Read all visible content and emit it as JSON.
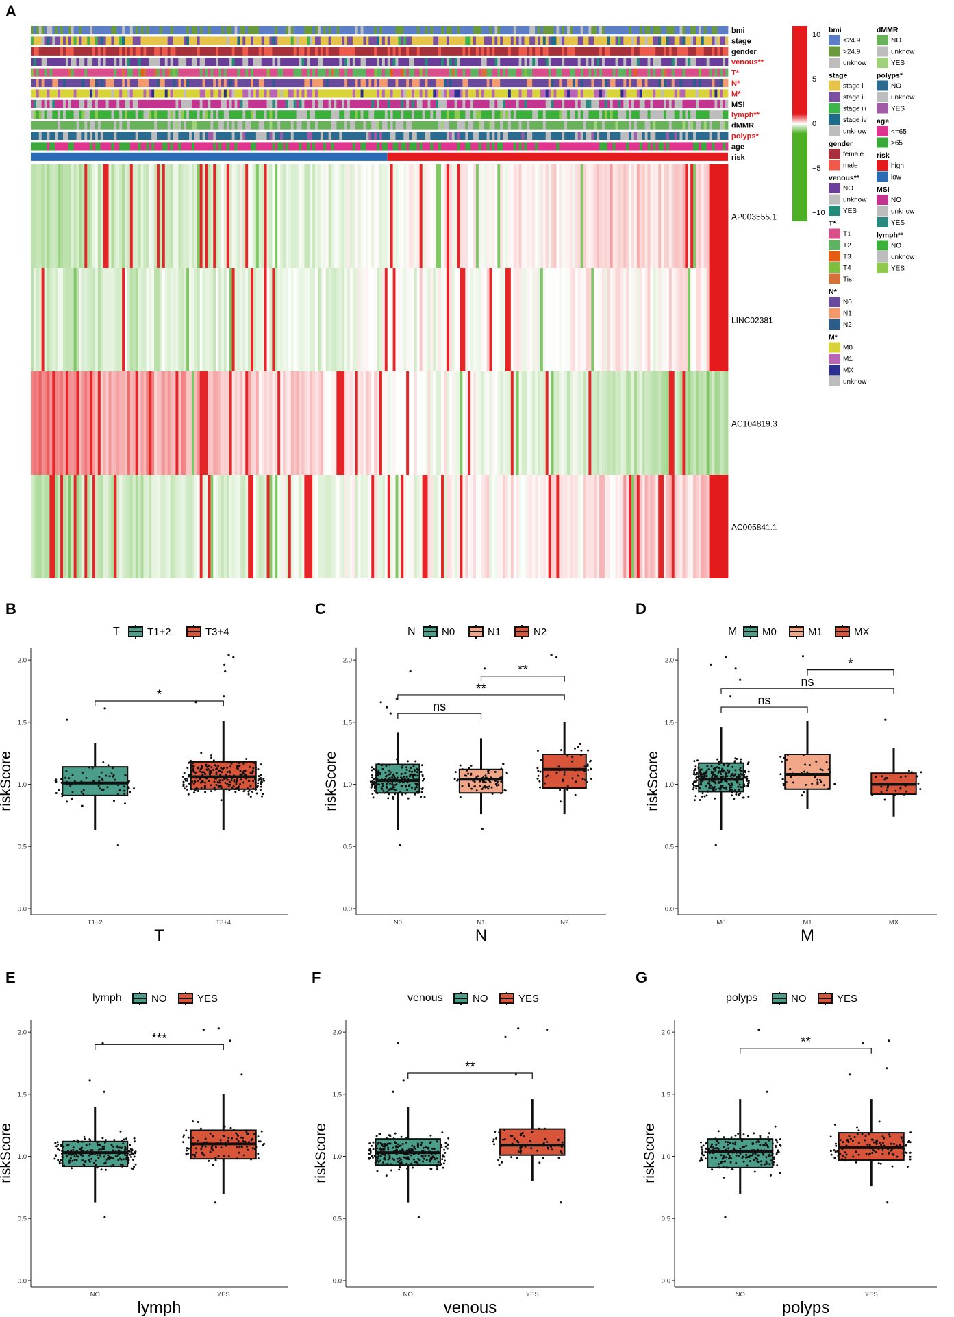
{
  "panels": {
    "A": "A",
    "B": "B",
    "C": "C",
    "D": "D",
    "E": "E",
    "F": "F",
    "G": "G"
  },
  "chart_data": [
    {
      "panel": "A",
      "type": "heatmap",
      "annotation_tracks": [
        {
          "label": "bmi",
          "significant": false
        },
        {
          "label": "stage",
          "significant": false
        },
        {
          "label": "gender",
          "significant": false
        },
        {
          "label": "venous**",
          "significant": true
        },
        {
          "label": "T*",
          "significant": true
        },
        {
          "label": "N*",
          "significant": true
        },
        {
          "label": "M*",
          "significant": true
        },
        {
          "label": "MSI",
          "significant": false
        },
        {
          "label": "lymph**",
          "significant": true
        },
        {
          "label": "dMMR",
          "significant": false
        },
        {
          "label": "polyps*",
          "significant": true
        },
        {
          "label": "age",
          "significant": false
        },
        {
          "label": "risk",
          "significant": false
        }
      ],
      "genes": [
        "AP003555.1",
        "LINC02381",
        "AC104819.3",
        "AC005841.1"
      ],
      "risk_split": {
        "low_fraction": 0.51
      },
      "color_scale": {
        "ticks": [
          10,
          5,
          0,
          -5,
          -10
        ],
        "high": "#e41a1c",
        "mid": "#ffffff",
        "low": "#4daf24"
      },
      "legends": [
        {
          "title": "bmi",
          "significant": false,
          "items": [
            {
              "label": "<24.9",
              "color": "#5b7ec6"
            },
            {
              "label": ">24.9",
              "color": "#6a9a3c"
            },
            {
              "label": "unknow",
              "color": "#bdbdbd"
            }
          ]
        },
        {
          "title": "stage",
          "significant": false,
          "items": [
            {
              "label": "stage i",
              "color": "#e6c449"
            },
            {
              "label": "stage ii",
              "color": "#7a4fa0"
            },
            {
              "label": "stage iii",
              "color": "#3db54a"
            },
            {
              "label": "stage iv",
              "color": "#1f6b8a"
            },
            {
              "label": "unknow",
              "color": "#bdbdbd"
            }
          ]
        },
        {
          "title": "gender",
          "significant": false,
          "items": [
            {
              "label": "female",
              "color": "#a8303a"
            },
            {
              "label": "male",
              "color": "#ef5a4a"
            }
          ]
        },
        {
          "title": "venous**",
          "significant": false,
          "items": [
            {
              "label": "NO",
              "color": "#6a3d9a"
            },
            {
              "label": "unknow",
              "color": "#bdbdbd"
            },
            {
              "label": "YES",
              "color": "#238b7a"
            }
          ]
        },
        {
          "title": "T*",
          "significant": false,
          "items": [
            {
              "label": "T1",
              "color": "#d94f8b"
            },
            {
              "label": "T2",
              "color": "#5fb360"
            },
            {
              "label": "T3",
              "color": "#e65c10"
            },
            {
              "label": "T4",
              "color": "#7fbf3f"
            },
            {
              "label": "Tis",
              "color": "#d6703a"
            }
          ]
        },
        {
          "title": "N*",
          "significant": false,
          "items": [
            {
              "label": "N0",
              "color": "#6a4a9c"
            },
            {
              "label": "N1",
              "color": "#f29a6e"
            },
            {
              "label": "N2",
              "color": "#2a5d8a"
            }
          ]
        },
        {
          "title": "M*",
          "significant": false,
          "items": [
            {
              "label": "M0",
              "color": "#d9d33a"
            },
            {
              "label": "M1",
              "color": "#b865b5"
            },
            {
              "label": "MX",
              "color": "#2b2f8f"
            },
            {
              "label": "unknow",
              "color": "#bdbdbd"
            }
          ]
        },
        {
          "title": "dMMR",
          "significant": false,
          "items": [
            {
              "label": "NO",
              "color": "#68b35a"
            },
            {
              "label": "unknow",
              "color": "#bdbdbd"
            },
            {
              "label": "YES",
              "color": "#9fd27a"
            }
          ]
        },
        {
          "title": "polyps*",
          "significant": false,
          "items": [
            {
              "label": "NO",
              "color": "#2a6b8f"
            },
            {
              "label": "unknow",
              "color": "#bdbdbd"
            },
            {
              "label": "YES",
              "color": "#a05aa8"
            }
          ]
        },
        {
          "title": "age",
          "significant": false,
          "items": [
            {
              "label": "<=65",
              "color": "#e0358f"
            },
            {
              "label": ">65",
              "color": "#3aa83a"
            }
          ]
        },
        {
          "title": "risk",
          "significant": false,
          "items": [
            {
              "label": "high",
              "color": "#e41a1c"
            },
            {
              "label": "low",
              "color": "#2b6bb5"
            }
          ]
        },
        {
          "title": "MSI",
          "significant": false,
          "items": [
            {
              "label": "NO",
              "color": "#c2348f"
            },
            {
              "label": "unknow",
              "color": "#bdbdbd"
            },
            {
              "label": "YES",
              "color": "#2a8a80"
            }
          ]
        },
        {
          "title": "lymph**",
          "significant": false,
          "items": [
            {
              "label": "NO",
              "color": "#3ab03a"
            },
            {
              "label": "unknow",
              "color": "#bdbdbd"
            },
            {
              "label": "YES",
              "color": "#8fc94f"
            }
          ]
        }
      ]
    },
    {
      "panel": "B",
      "type": "box",
      "legend_title": "T",
      "xlabel": "T",
      "ylabel": "riskScore",
      "ylim": [
        -0.05,
        2.1
      ],
      "yticks": [
        "0.0",
        "0.5",
        "1.0",
        "1.5",
        "2.0"
      ],
      "groups": [
        {
          "label": "T1+2",
          "color": "#4a9e8a",
          "q1": 0.91,
          "median": 1.01,
          "q3": 1.14,
          "wmin": 0.63,
          "wmax": 1.33,
          "outliers": [
            1.61,
            1.52,
            0.51
          ],
          "n": 70
        },
        {
          "label": "T3+4",
          "color": "#d8553a",
          "q1": 0.96,
          "median": 1.06,
          "q3": 1.18,
          "wmin": 0.63,
          "wmax": 1.51,
          "outliers": [
            2.02,
            2.04,
            1.96,
            1.91,
            1.71,
            1.66
          ],
          "n": 250
        }
      ],
      "comparisons": [
        {
          "from": 0,
          "to": 1,
          "y": 1.67,
          "label": "*"
        }
      ]
    },
    {
      "panel": "C",
      "type": "box",
      "legend_title": "N",
      "xlabel": "N",
      "ylabel": "riskScore",
      "ylim": [
        -0.05,
        2.1
      ],
      "yticks": [
        "0.0",
        "0.5",
        "1.0",
        "1.5",
        "2.0"
      ],
      "groups": [
        {
          "label": "N0",
          "color": "#4a9e8a",
          "q1": 0.93,
          "median": 1.03,
          "q3": 1.16,
          "wmin": 0.63,
          "wmax": 1.42,
          "outliers": [
            1.91,
            1.69,
            1.66,
            1.62,
            1.57,
            0.51
          ],
          "n": 190
        },
        {
          "label": "N1",
          "color": "#f2a688",
          "q1": 0.93,
          "median": 1.04,
          "q3": 1.12,
          "wmin": 0.76,
          "wmax": 1.37,
          "outliers": [
            1.93,
            0.64
          ],
          "n": 75
        },
        {
          "label": "N2",
          "color": "#d8553a",
          "q1": 0.97,
          "median": 1.12,
          "q3": 1.24,
          "wmin": 0.76,
          "wmax": 1.5,
          "outliers": [
            2.02,
            2.04
          ],
          "n": 55
        }
      ],
      "comparisons": [
        {
          "from": 1,
          "to": 2,
          "y": 1.87,
          "label": "**"
        },
        {
          "from": 0,
          "to": 2,
          "y": 1.72,
          "label": "**"
        },
        {
          "from": 0,
          "to": 1,
          "y": 1.57,
          "label": "ns"
        }
      ]
    },
    {
      "panel": "D",
      "type": "box",
      "legend_title": "M",
      "xlabel": "M",
      "ylabel": "riskScore",
      "ylim": [
        -0.05,
        2.1
      ],
      "yticks": [
        "0.0",
        "0.5",
        "1.0",
        "1.5",
        "2.0"
      ],
      "groups": [
        {
          "label": "M0",
          "color": "#4a9e8a",
          "q1": 0.94,
          "median": 1.04,
          "q3": 1.17,
          "wmin": 0.63,
          "wmax": 1.46,
          "outliers": [
            2.02,
            1.96,
            1.93,
            1.84,
            1.71,
            0.51
          ],
          "n": 250
        },
        {
          "label": "M1",
          "color": "#f2a688",
          "q1": 0.96,
          "median": 1.08,
          "q3": 1.24,
          "wmin": 0.8,
          "wmax": 1.51,
          "outliers": [
            2.03
          ],
          "n": 45
        },
        {
          "label": "MX",
          "color": "#d8553a",
          "q1": 0.92,
          "median": 1.0,
          "q3": 1.09,
          "wmin": 0.74,
          "wmax": 1.29,
          "outliers": [
            1.52
          ],
          "n": 30
        }
      ],
      "comparisons": [
        {
          "from": 1,
          "to": 2,
          "y": 1.92,
          "label": "*"
        },
        {
          "from": 0,
          "to": 2,
          "y": 1.77,
          "label": "ns"
        },
        {
          "from": 0,
          "to": 1,
          "y": 1.62,
          "label": "ns"
        }
      ]
    },
    {
      "panel": "E",
      "type": "box",
      "legend_title": "lymph",
      "xlabel": "lymph",
      "ylabel": "riskScore",
      "ylim": [
        -0.05,
        2.1
      ],
      "yticks": [
        "0.0",
        "0.5",
        "1.0",
        "1.5",
        "2.0"
      ],
      "groups": [
        {
          "label": "NO",
          "color": "#4a9e8a",
          "q1": 0.92,
          "median": 1.03,
          "q3": 1.12,
          "wmin": 0.63,
          "wmax": 1.4,
          "outliers": [
            1.91,
            1.61,
            1.52,
            0.51
          ],
          "n": 200
        },
        {
          "label": "YES",
          "color": "#d8553a",
          "q1": 0.98,
          "median": 1.1,
          "q3": 1.21,
          "wmin": 0.7,
          "wmax": 1.5,
          "outliers": [
            2.02,
            2.03,
            1.93,
            1.66,
            0.63
          ],
          "n": 110
        }
      ],
      "comparisons": [
        {
          "from": 0,
          "to": 1,
          "y": 1.9,
          "label": "***"
        }
      ]
    },
    {
      "panel": "F",
      "type": "box",
      "legend_title": "venous",
      "xlabel": "venous",
      "ylabel": "riskScore",
      "ylim": [
        -0.05,
        2.1
      ],
      "yticks": [
        "0.0",
        "0.5",
        "1.0",
        "1.5",
        "2.0"
      ],
      "groups": [
        {
          "label": "NO",
          "color": "#4a9e8a",
          "q1": 0.93,
          "median": 1.03,
          "q3": 1.14,
          "wmin": 0.63,
          "wmax": 1.4,
          "outliers": [
            1.91,
            1.61,
            1.52,
            0.51
          ],
          "n": 250
        },
        {
          "label": "YES",
          "color": "#d8553a",
          "q1": 1.01,
          "median": 1.09,
          "q3": 1.22,
          "wmin": 0.8,
          "wmax": 1.46,
          "outliers": [
            2.02,
            2.03,
            1.96,
            1.66,
            0.63
          ],
          "n": 60
        }
      ],
      "comparisons": [
        {
          "from": 0,
          "to": 1,
          "y": 1.67,
          "label": "**"
        }
      ]
    },
    {
      "panel": "G",
      "type": "box",
      "legend_title": "polyps",
      "xlabel": "polyps",
      "ylabel": "riskScore",
      "ylim": [
        -0.05,
        2.1
      ],
      "yticks": [
        "0.0",
        "0.5",
        "1.0",
        "1.5",
        "2.0"
      ],
      "groups": [
        {
          "label": "NO",
          "color": "#4a9e8a",
          "q1": 0.91,
          "median": 1.04,
          "q3": 1.14,
          "wmin": 0.7,
          "wmax": 1.46,
          "outliers": [
            2.02,
            1.52,
            0.51
          ],
          "n": 200
        },
        {
          "label": "YES",
          "color": "#d8553a",
          "q1": 0.97,
          "median": 1.07,
          "q3": 1.19,
          "wmin": 0.76,
          "wmax": 1.46,
          "outliers": [
            1.91,
            1.93,
            1.71,
            1.66,
            0.63
          ],
          "n": 110
        }
      ],
      "comparisons": [
        {
          "from": 0,
          "to": 1,
          "y": 1.87,
          "label": "**"
        }
      ]
    }
  ]
}
